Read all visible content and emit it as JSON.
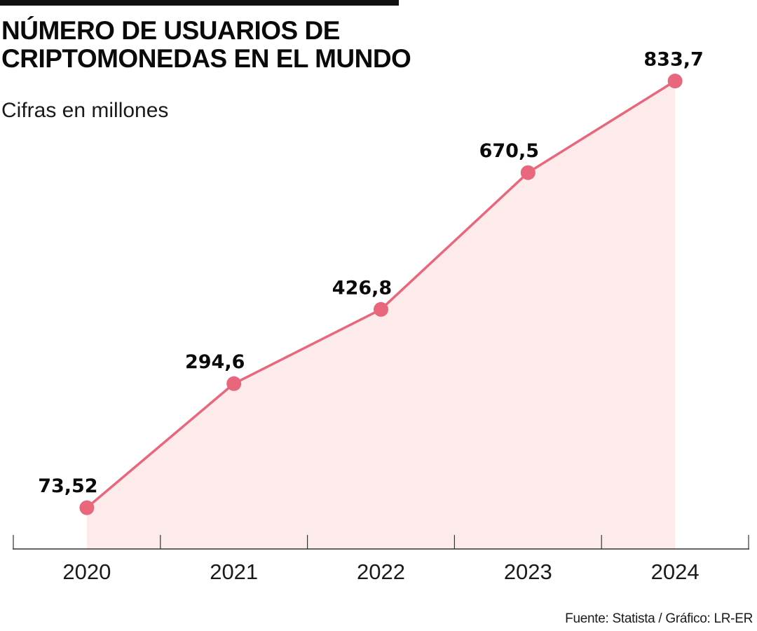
{
  "header": {
    "title_line1": "NÚMERO DE USUARIOS DE",
    "title_line2": "CRIPTOMONEDAS EN EL MUNDO",
    "subtitle": "Cifras en millones"
  },
  "footer": {
    "source": "Fuente: Statista / Gráfico: LR-ER"
  },
  "colors": {
    "line": "#e8677d",
    "area": "#fdebec",
    "axis": "#333333",
    "text": "#0a0a0a"
  },
  "chart_data": {
    "type": "area",
    "title": "NÚMERO DE USUARIOS DE CRIPTOMONEDAS EN EL MUNDO",
    "subtitle": "Cifras en millones",
    "xlabel": "",
    "ylabel": "",
    "categories": [
      "2020",
      "2021",
      "2022",
      "2023",
      "2024"
    ],
    "values": [
      73.52,
      294.6,
      426.8,
      670.5,
      833.7
    ],
    "data_labels": [
      "73,52",
      "294,6",
      "426,8",
      "670,5",
      "833,7"
    ],
    "ylim": [
      0,
      978
    ],
    "grid": false,
    "legend": "none",
    "source": "Fuente: Statista / Gráfico: LR-ER"
  }
}
